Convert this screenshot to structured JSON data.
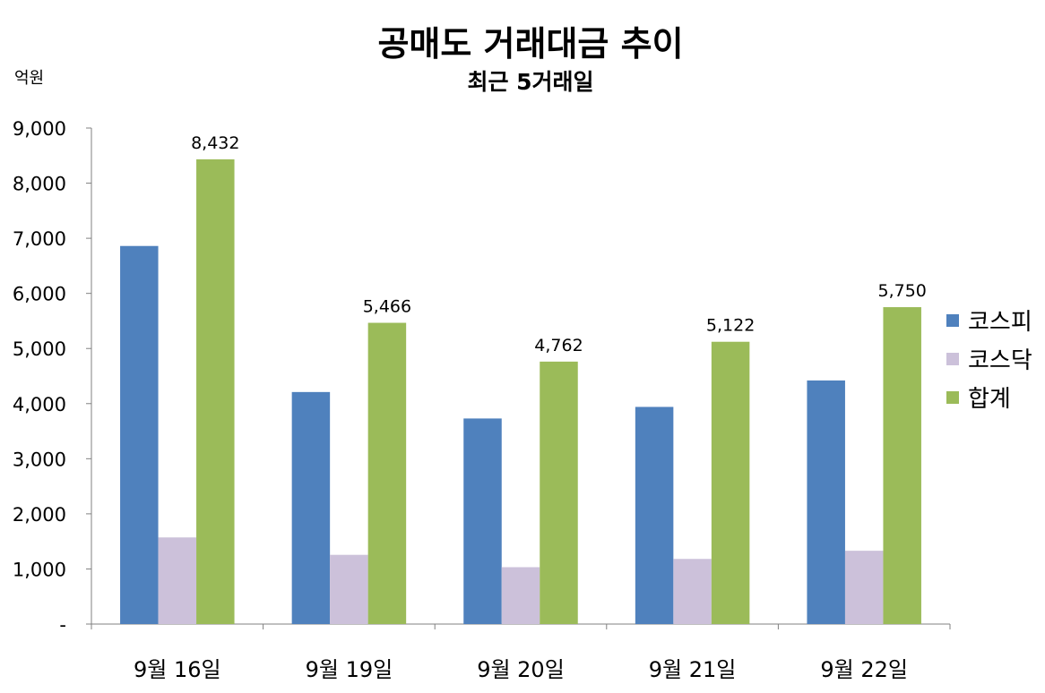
{
  "chart_data": {
    "type": "bar",
    "title": "공매도 거래대금 추이",
    "subtitle": "최근 5거래일",
    "ylabel": "억원",
    "ylim": [
      0,
      9000
    ],
    "yticks": [
      0,
      1000,
      2000,
      3000,
      4000,
      5000,
      6000,
      7000,
      8000,
      9000
    ],
    "ytick_labels": [
      "-",
      "1,000",
      "2,000",
      "3,000",
      "4,000",
      "5,000",
      "6,000",
      "7,000",
      "8,000",
      "9,000"
    ],
    "categories": [
      "9월 16일",
      "9월 19일",
      "9월 20일",
      "9월 21일",
      "9월 22일"
    ],
    "series": [
      {
        "name": "코스피",
        "color": "#4f81bd",
        "values": [
          6860,
          4210,
          3730,
          3940,
          4420
        ]
      },
      {
        "name": "코스닥",
        "color": "#ccc1da",
        "values": [
          1572,
          1256,
          1032,
          1182,
          1330
        ]
      },
      {
        "name": "합계",
        "color": "#9bbb59",
        "values": [
          8432,
          5466,
          4762,
          5122,
          5750
        ],
        "data_labels": [
          "8,432",
          "5,466",
          "4,762",
          "5,122",
          "5,750"
        ]
      }
    ],
    "grid": false,
    "legend": "right"
  }
}
